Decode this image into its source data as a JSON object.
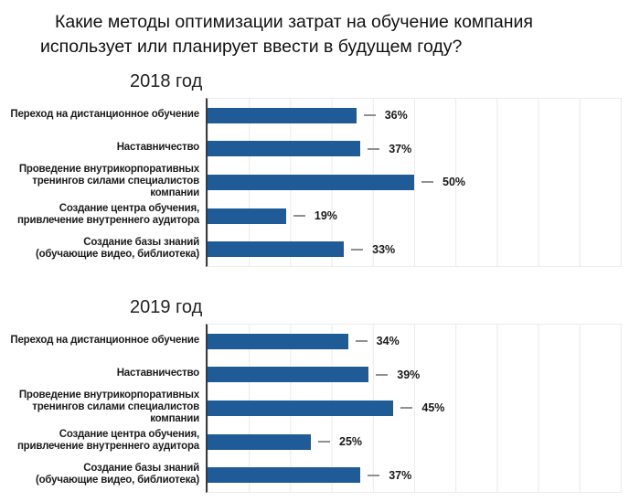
{
  "page": {
    "title": "Какие методы оптимизации затрат на обучение компания\nиспользует или планирует ввести в будущем году?"
  },
  "colors": {
    "bar": "#1f5b96",
    "grid": "#eaeaea",
    "axis": "#3a3a3a",
    "dash": "#909090",
    "text": "#1a1a1a"
  },
  "chart_data": [
    {
      "type": "bar",
      "orientation": "horizontal",
      "title": "2018 год",
      "categories": [
        "Переход на дистанционное обучение",
        "Наставничество",
        "Проведение внутрикорпоративных\nтренингов силами специалистов\nкомпании",
        "Создание центра обучения,\nпривлечение внутреннего аудитора",
        "Создание базы знаний\n(обучающие видео, библиотека)"
      ],
      "values": [
        36,
        37,
        50,
        19,
        33
      ],
      "value_labels": [
        "36%",
        "37%",
        "50%",
        "19%",
        "33%"
      ],
      "value_suffix": "%",
      "xlim": [
        0,
        100
      ],
      "gridline_step": 10,
      "grid": true,
      "legend": "none",
      "bar_color": "#1f5b96"
    },
    {
      "type": "bar",
      "orientation": "horizontal",
      "title": "2019 год",
      "categories": [
        "Переход на дистанционное обучение",
        "Наставничество",
        "Проведение внутрикорпоративных\nтренингов силами специалистов\nкомпании",
        "Создание центра обучения,\nпривлечение внутреннего аудитора",
        "Создание базы знаний\n(обучающие видео, библиотека)"
      ],
      "values": [
        34,
        39,
        45,
        25,
        37
      ],
      "value_labels": [
        "34%",
        "39%",
        "45%",
        "25%",
        "37%"
      ],
      "value_suffix": "%",
      "xlim": [
        0,
        100
      ],
      "gridline_step": 10,
      "grid": true,
      "legend": "none",
      "bar_color": "#1f5b96"
    }
  ]
}
